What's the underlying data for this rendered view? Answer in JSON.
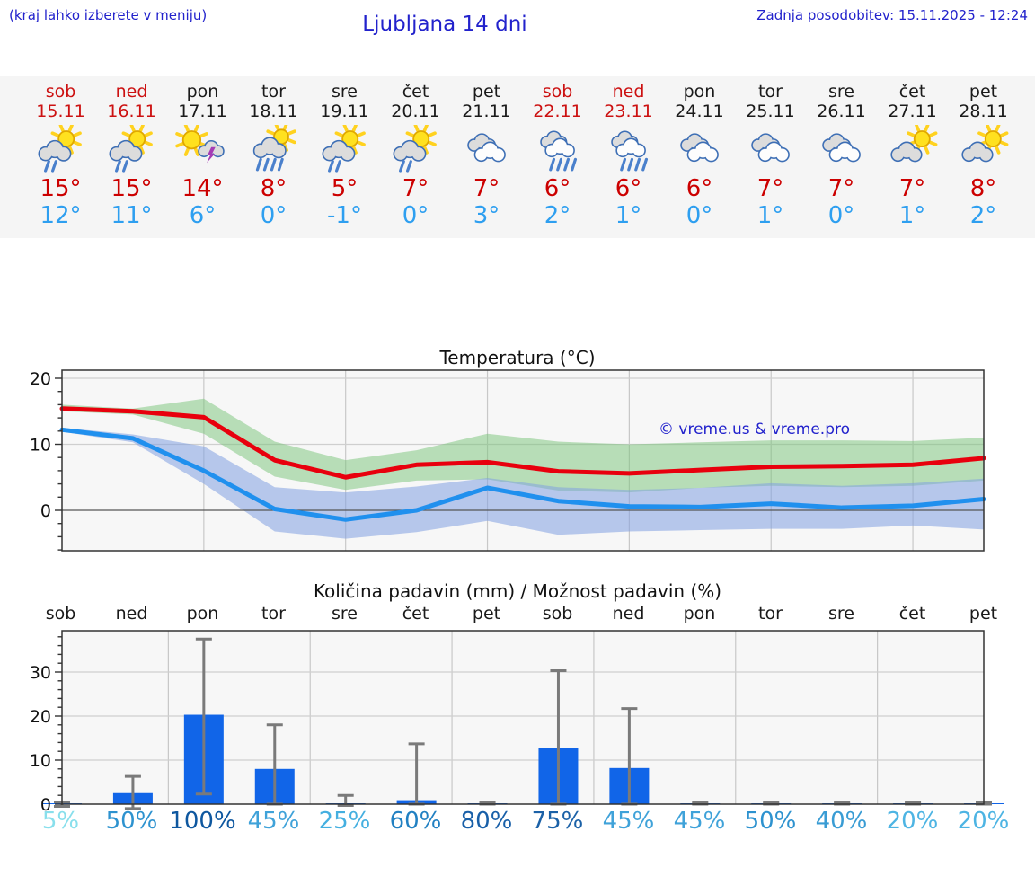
{
  "header": {
    "menu_hint": "(kraj lahko izberete v meniju)",
    "title": "Ljubljana 14 dni",
    "last_update": "Zadnja posodobitev: 15.11.2025 - 12:24"
  },
  "colors": {
    "accent_blue": "#2222cc",
    "weekend_red": "#cc1111",
    "tmax_red": "#cc0000",
    "tmin_blue": "#2e9ff0",
    "line_max": "#e8000d",
    "line_min": "#2090ee",
    "band_max": "rgba(120,195,120,0.5)",
    "band_min": "rgba(130,160,225,0.55)",
    "bar_blue": "#1165e8",
    "error_gray": "#7a7a7a",
    "plot_bg": "#f7f7f7",
    "grid": "#cfcfcf",
    "zero_line": "#555555"
  },
  "forecast": {
    "days": [
      {
        "name": "sob",
        "date": "15.11",
        "weekend": true,
        "icon": "sun-cloud-rain",
        "tmax": "15°",
        "tmin": "12°"
      },
      {
        "name": "ned",
        "date": "16.11",
        "weekend": true,
        "icon": "sun-cloud-rain",
        "tmax": "15°",
        "tmin": "11°"
      },
      {
        "name": "pon",
        "date": "17.11",
        "weekend": false,
        "icon": "sun-cloud-thunder",
        "tmax": "14°",
        "tmin": "6°"
      },
      {
        "name": "tor",
        "date": "18.11",
        "weekend": false,
        "icon": "sun-cloud-heavy-rain",
        "tmax": "8°",
        "tmin": "0°"
      },
      {
        "name": "sre",
        "date": "19.11",
        "weekend": false,
        "icon": "sun-cloud-rain",
        "tmax": "5°",
        "tmin": "-1°"
      },
      {
        "name": "čet",
        "date": "20.11",
        "weekend": false,
        "icon": "sun-cloud-rain",
        "tmax": "7°",
        "tmin": "0°"
      },
      {
        "name": "pet",
        "date": "21.11",
        "weekend": false,
        "icon": "clouds",
        "tmax": "7°",
        "tmin": "3°"
      },
      {
        "name": "sob",
        "date": "22.11",
        "weekend": true,
        "icon": "clouds-rain",
        "tmax": "6°",
        "tmin": "2°"
      },
      {
        "name": "ned",
        "date": "23.11",
        "weekend": true,
        "icon": "clouds-rain",
        "tmax": "6°",
        "tmin": "1°"
      },
      {
        "name": "pon",
        "date": "24.11",
        "weekend": false,
        "icon": "clouds",
        "tmax": "6°",
        "tmin": "0°"
      },
      {
        "name": "tor",
        "date": "25.11",
        "weekend": false,
        "icon": "clouds",
        "tmax": "7°",
        "tmin": "1°"
      },
      {
        "name": "sre",
        "date": "26.11",
        "weekend": false,
        "icon": "clouds",
        "tmax": "7°",
        "tmin": "0°"
      },
      {
        "name": "čet",
        "date": "27.11",
        "weekend": false,
        "icon": "cloud-sun",
        "tmax": "7°",
        "tmin": "1°"
      },
      {
        "name": "pet",
        "date": "28.11",
        "weekend": false,
        "icon": "cloud-sun",
        "tmax": "8°",
        "tmin": "2°"
      }
    ]
  },
  "chart_data": [
    {
      "type": "line",
      "title": "Temperatura (°C)",
      "watermark": "© vreme.us & vreme.pro",
      "categories": [
        "sob",
        "ned",
        "pon",
        "tor",
        "sre",
        "čet",
        "pet",
        "sob",
        "ned",
        "pon",
        "tor",
        "sre",
        "čet",
        "pet"
      ],
      "ylim": [
        -6.1,
        21.2
      ],
      "yticks": [
        0,
        10,
        20
      ],
      "grid": true,
      "series": [
        {
          "name": "max-temp",
          "values": [
            15.4,
            15.0,
            14.1,
            7.6,
            5.0,
            6.9,
            7.3,
            5.9,
            5.6,
            6.1,
            6.6,
            6.7,
            6.9,
            7.9
          ]
        },
        {
          "name": "min-temp",
          "values": [
            12.2,
            10.9,
            6.0,
            0.2,
            -1.4,
            0.0,
            3.4,
            1.4,
            0.6,
            0.5,
            1.0,
            0.4,
            0.7,
            1.7
          ]
        }
      ],
      "bands": [
        {
          "name": "max-temp-range",
          "hi": [
            16.0,
            15.4,
            16.9,
            10.4,
            7.6,
            9.1,
            11.6,
            10.4,
            10.0,
            10.3,
            10.6,
            10.6,
            10.5,
            11.0
          ],
          "lo": [
            15.0,
            14.5,
            11.6,
            5.1,
            3.1,
            4.5,
            4.7,
            3.0,
            2.7,
            3.4,
            3.7,
            3.5,
            3.7,
            4.5
          ]
        },
        {
          "name": "min-temp-range",
          "hi": [
            12.5,
            11.5,
            9.7,
            3.5,
            2.7,
            3.6,
            4.9,
            3.5,
            3.1,
            3.4,
            4.1,
            3.7,
            4.1,
            4.8
          ],
          "lo": [
            11.9,
            10.3,
            4.0,
            -3.2,
            -4.3,
            -3.3,
            -1.6,
            -3.7,
            -3.2,
            -3.0,
            -2.8,
            -2.8,
            -2.3,
            -2.9
          ]
        }
      ]
    },
    {
      "type": "bar",
      "title": "Količina padavin (mm) / Možnost padavin (%)",
      "categories": [
        "sob",
        "ned",
        "pon",
        "tor",
        "sre",
        "čet",
        "pet",
        "sob",
        "ned",
        "pon",
        "tor",
        "sre",
        "čet",
        "pet"
      ],
      "ylim": [
        0,
        39.4
      ],
      "yticks": [
        0,
        10,
        20,
        30
      ],
      "grid": true,
      "values": [
        0.2,
        2.5,
        20.3,
        8.0,
        0.2,
        0.9,
        0.1,
        12.8,
        8.2,
        0.2,
        0.2,
        0.2,
        0.2,
        0.2
      ],
      "err_low": [
        -0.5,
        -1.0,
        2.3,
        0,
        -0.3,
        0,
        0,
        0,
        0,
        0,
        0,
        0,
        0,
        0
      ],
      "err_high": [
        0.5,
        6.3,
        37.5,
        18.0,
        2.0,
        13.7,
        0.3,
        30.3,
        21.7,
        0.4,
        0.4,
        0.4,
        0.4,
        0.4
      ],
      "percent_labels": [
        {
          "text": "5%",
          "color": "#88dfec"
        },
        {
          "text": "50%",
          "color": "#2d92cf"
        },
        {
          "text": "100%",
          "color": "#0e579f"
        },
        {
          "text": "45%",
          "color": "#3fa2d9"
        },
        {
          "text": "25%",
          "color": "#44afe0"
        },
        {
          "text": "60%",
          "color": "#2180c2"
        },
        {
          "text": "80%",
          "color": "#185fa8"
        },
        {
          "text": "75%",
          "color": "#1b61a7"
        },
        {
          "text": "45%",
          "color": "#3fa2d9"
        },
        {
          "text": "45%",
          "color": "#3fa2d9"
        },
        {
          "text": "50%",
          "color": "#2d92cf"
        },
        {
          "text": "40%",
          "color": "#399cd4"
        },
        {
          "text": "20%",
          "color": "#4db4e3"
        },
        {
          "text": "20%",
          "color": "#4db4e3"
        }
      ]
    }
  ]
}
